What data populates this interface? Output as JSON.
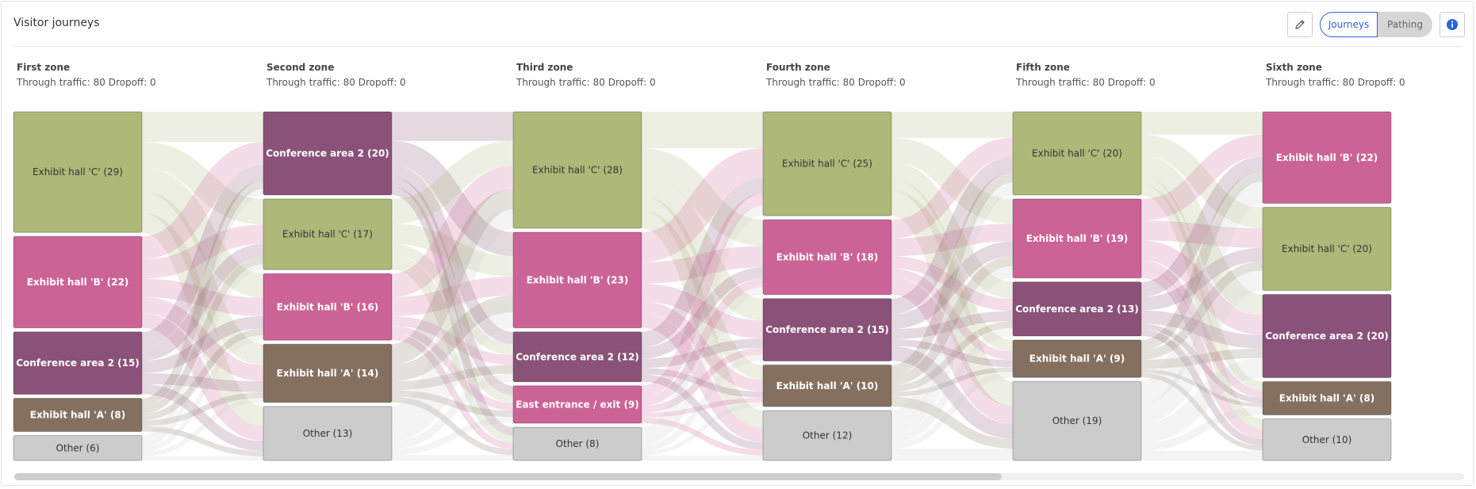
{
  "header": {
    "title": "Visitor journeys",
    "toggle": {
      "journeys_label": "Journeys",
      "pathing_label": "Pathing",
      "selected": "Journeys"
    },
    "edit_icon": "pencil-icon",
    "info_icon": "info-icon"
  },
  "colors": {
    "Exhibit hall 'C'": "#adb879",
    "Exhibit hall 'B'": "#cc6396",
    "Conference area 2": "#8a5278",
    "Exhibit hall 'A'": "#857060",
    "Other": "#cccccc",
    "East entrance / exit": "#cc6396"
  },
  "zones": [
    {
      "name": "First zone",
      "stats": "Through traffic: 80 Dropoff: 0",
      "nodes": [
        {
          "label": "Exhibit hall 'C' (29)",
          "category": "Exhibit hall 'C'",
          "value": 29
        },
        {
          "label": "Exhibit hall 'B' (22)",
          "category": "Exhibit hall 'B'",
          "value": 22
        },
        {
          "label": "Conference area 2 (15)",
          "category": "Conference area 2",
          "value": 15
        },
        {
          "label": "Exhibit hall 'A' (8)",
          "category": "Exhibit hall 'A'",
          "value": 8
        },
        {
          "label": "Other (6)",
          "category": "Other",
          "value": 6
        }
      ]
    },
    {
      "name": "Second zone",
      "stats": "Through traffic: 80 Dropoff: 0",
      "nodes": [
        {
          "label": "Conference area 2 (20)",
          "category": "Conference area 2",
          "value": 20
        },
        {
          "label": "Exhibit hall 'C' (17)",
          "category": "Exhibit hall 'C'",
          "value": 17
        },
        {
          "label": "Exhibit hall 'B' (16)",
          "category": "Exhibit hall 'B'",
          "value": 16
        },
        {
          "label": "Exhibit hall 'A' (14)",
          "category": "Exhibit hall 'A'",
          "value": 14
        },
        {
          "label": "Other (13)",
          "category": "Other",
          "value": 13
        }
      ]
    },
    {
      "name": "Third zone",
      "stats": "Through traffic: 80 Dropoff: 0",
      "nodes": [
        {
          "label": "Exhibit hall 'C' (28)",
          "category": "Exhibit hall 'C'",
          "value": 28
        },
        {
          "label": "Exhibit hall 'B' (23)",
          "category": "Exhibit hall 'B'",
          "value": 23
        },
        {
          "label": "Conference area 2 (12)",
          "category": "Conference area 2",
          "value": 12
        },
        {
          "label": "East entrance / exit (9)",
          "category": "East entrance / exit",
          "value": 9
        },
        {
          "label": "Other (8)",
          "category": "Other",
          "value": 8
        }
      ]
    },
    {
      "name": "Fourth zone",
      "stats": "Through traffic: 80 Dropoff: 0",
      "nodes": [
        {
          "label": "Exhibit hall 'C' (25)",
          "category": "Exhibit hall 'C'",
          "value": 25
        },
        {
          "label": "Exhibit hall 'B' (18)",
          "category": "Exhibit hall 'B'",
          "value": 18
        },
        {
          "label": "Conference area 2 (15)",
          "category": "Conference area 2",
          "value": 15
        },
        {
          "label": "Exhibit hall 'A' (10)",
          "category": "Exhibit hall 'A'",
          "value": 10
        },
        {
          "label": "Other (12)",
          "category": "Other",
          "value": 12
        }
      ]
    },
    {
      "name": "Fifth zone",
      "stats": "Through traffic: 80 Dropoff: 0",
      "nodes": [
        {
          "label": "Exhibit hall 'C' (20)",
          "category": "Exhibit hall 'C'",
          "value": 20
        },
        {
          "label": "Exhibit hall 'B' (19)",
          "category": "Exhibit hall 'B'",
          "value": 19
        },
        {
          "label": "Conference area 2 (13)",
          "category": "Conference area 2",
          "value": 13
        },
        {
          "label": "Exhibit hall 'A' (9)",
          "category": "Exhibit hall 'A'",
          "value": 9
        },
        {
          "label": "Other (19)",
          "category": "Other",
          "value": 19
        }
      ]
    },
    {
      "name": "Sixth zone",
      "stats": "Through traffic: 80 Dropoff: 0",
      "nodes": [
        {
          "label": "Exhibit hall 'B' (22)",
          "category": "Exhibit hall 'B'",
          "value": 22
        },
        {
          "label": "Exhibit hall 'C' (20)",
          "category": "Exhibit hall 'C'",
          "value": 20
        },
        {
          "label": "Conference area 2 (20)",
          "category": "Conference area 2",
          "value": 20
        },
        {
          "label": "Exhibit hall 'A' (8)",
          "category": "Exhibit hall 'A'",
          "value": 8
        },
        {
          "label": "Other (10)",
          "category": "Other",
          "value": 10
        }
      ]
    }
  ]
}
